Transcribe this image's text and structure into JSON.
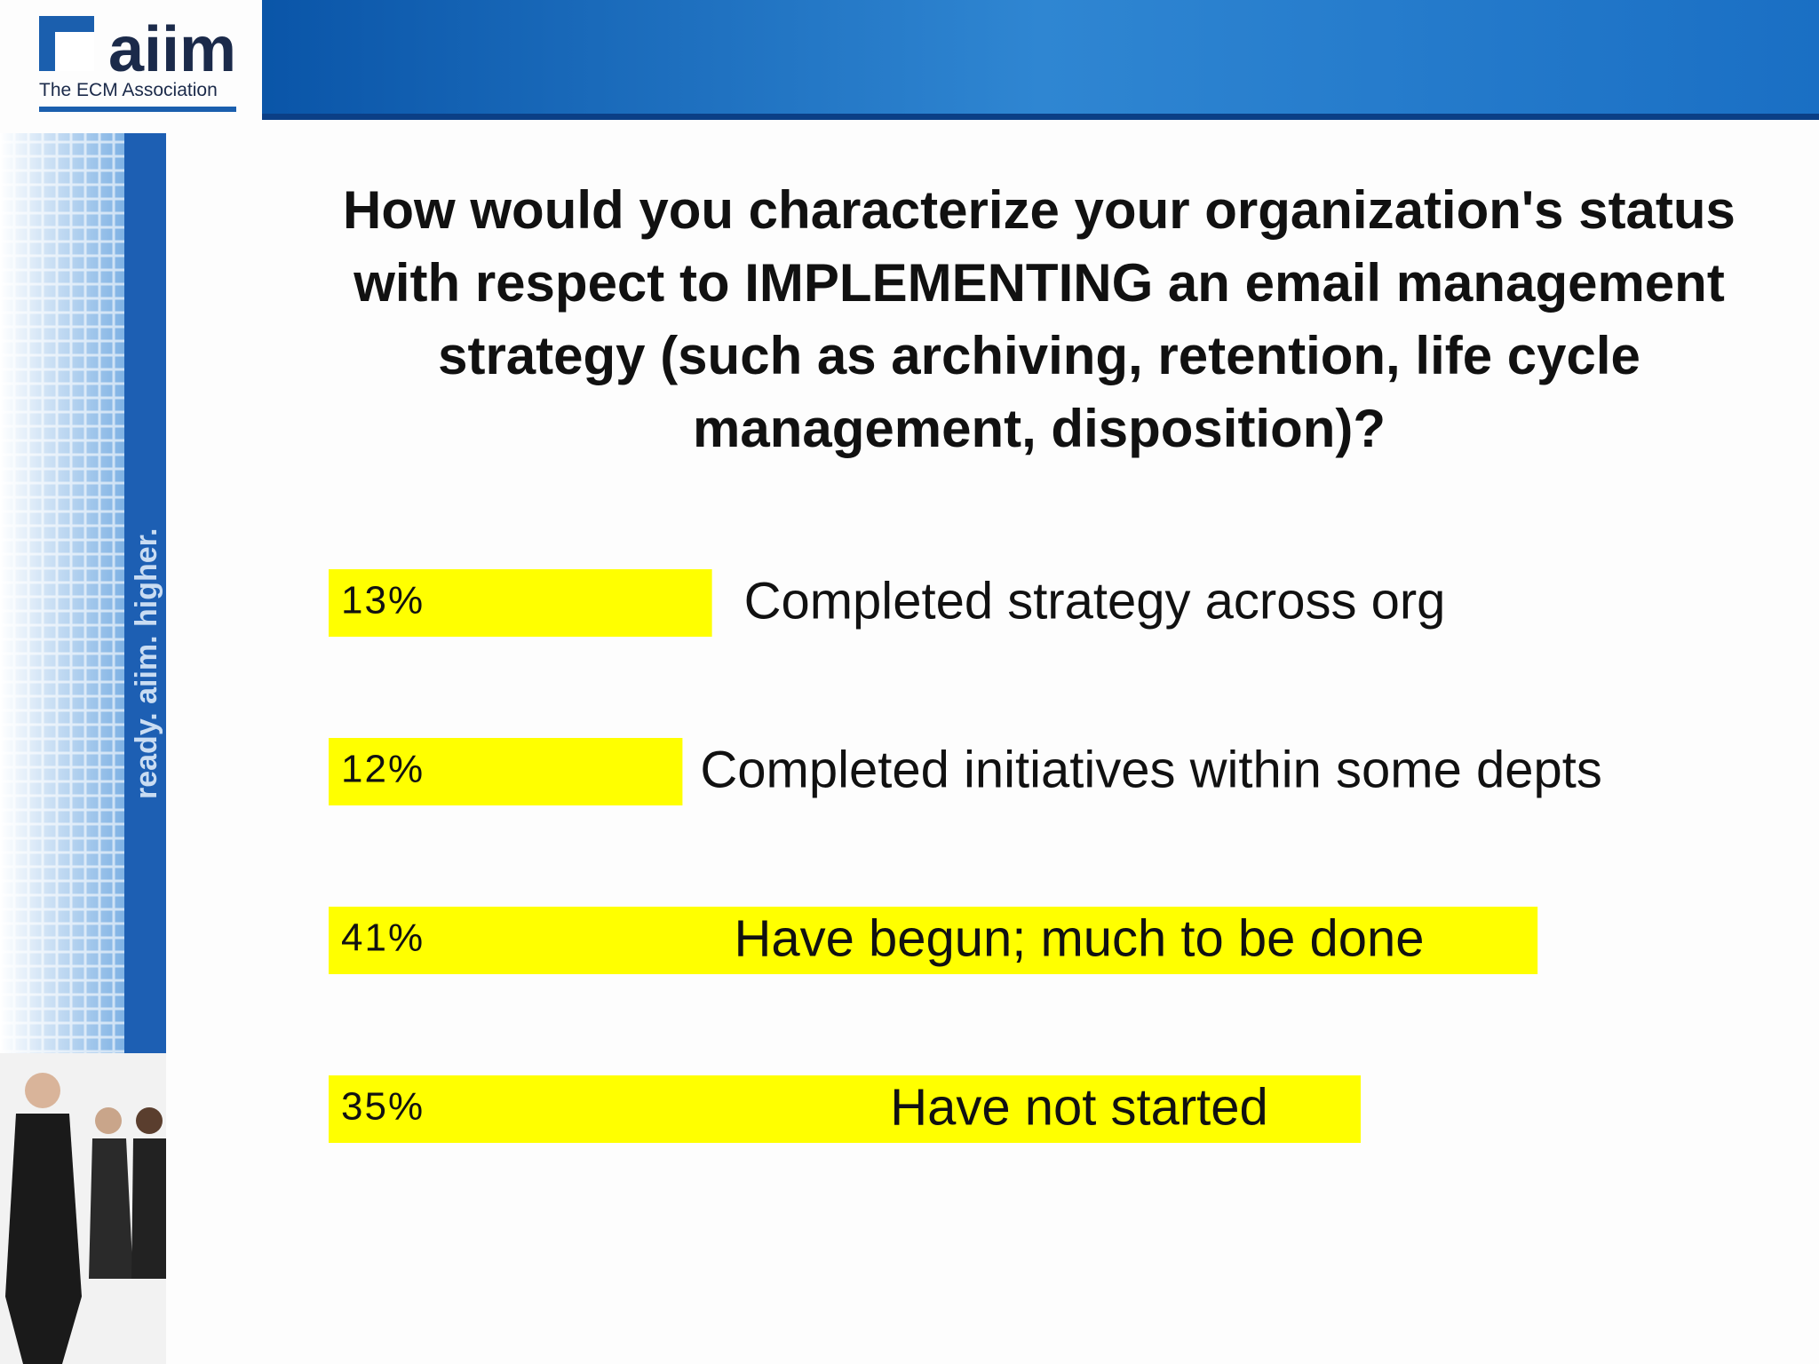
{
  "page": {
    "logo": "aiim",
    "logo_subtitle": "The ECM Association",
    "sidebar_tagline": "ready. aiim. higher."
  },
  "chart_data": {
    "type": "bar",
    "orientation": "horizontal",
    "title": "How would you characterize your organization's status with respect to IMPLEMENTING an email management strategy (such as archiving, retention, life cycle management, disposition)?",
    "categories": [
      "Completed strategy across org",
      "Completed initiatives within some depts",
      "Have begun; much to be done",
      "Have not started"
    ],
    "values": [
      13,
      12,
      41,
      35
    ],
    "value_labels": [
      "13%",
      "12%",
      "41%",
      "35%"
    ],
    "color": "#ffff00"
  }
}
